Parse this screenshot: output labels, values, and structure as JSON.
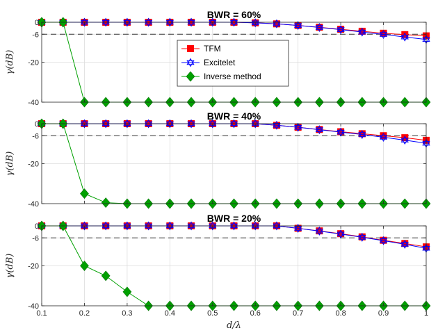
{
  "chart_data": [
    {
      "type": "line",
      "title": "BWR = 60%",
      "ylabel": "γ(dB)",
      "xlabel": "",
      "xlim": [
        0.1,
        1.0
      ],
      "ylim": [
        -40,
        0
      ],
      "xticks": [
        0.1,
        0.2,
        0.3,
        0.4,
        0.5,
        0.6,
        0.7,
        0.8,
        0.9,
        1
      ],
      "yticks": [
        0,
        -6,
        -20,
        -40
      ],
      "ytick_labels": [
        "0",
        "-6",
        "-20",
        "-40"
      ],
      "reference_line": -6,
      "grid": true,
      "legend_position": "center",
      "x": [
        0.1,
        0.15,
        0.2,
        0.25,
        0.3,
        0.35,
        0.4,
        0.45,
        0.5,
        0.55,
        0.6,
        0.65,
        0.7,
        0.75,
        0.8,
        0.85,
        0.9,
        0.95,
        1.0
      ],
      "series": [
        {
          "name": "TFM",
          "color": "#ff0000",
          "marker": "square",
          "values": [
            0,
            0,
            0,
            0,
            0,
            0,
            0,
            0,
            0,
            0,
            -0.3,
            -0.8,
            -1.6,
            -2.5,
            -3.5,
            -4.5,
            -5.5,
            -6.2,
            -6.8
          ]
        },
        {
          "name": "Excitelet",
          "color": "#0000ff",
          "marker": "hexagram",
          "values": [
            0,
            0,
            0,
            0,
            0,
            0,
            0,
            0,
            0,
            0,
            -0.3,
            -0.8,
            -1.6,
            -2.6,
            -3.7,
            -4.9,
            -6.1,
            -7.4,
            -8.6
          ]
        },
        {
          "name": "Inverse method",
          "color": "#00a000",
          "marker": "diamond",
          "values": [
            0,
            0,
            -40,
            -40,
            -40,
            -40,
            -40,
            -40,
            -40,
            -40,
            -40,
            -40,
            -40,
            -40,
            -40,
            -40,
            -40,
            -40,
            -40
          ]
        }
      ]
    },
    {
      "type": "line",
      "title": "BWR = 40%",
      "ylabel": "γ(dB)",
      "xlabel": "",
      "xlim": [
        0.1,
        1.0
      ],
      "ylim": [
        -40,
        0
      ],
      "xticks": [
        0.1,
        0.2,
        0.3,
        0.4,
        0.5,
        0.6,
        0.7,
        0.8,
        0.9,
        1
      ],
      "yticks": [
        0,
        -6,
        -20,
        -40
      ],
      "ytick_labels": [
        "0",
        "-6",
        "-20",
        "-40"
      ],
      "reference_line": -6,
      "grid": true,
      "x": [
        0.1,
        0.15,
        0.2,
        0.25,
        0.3,
        0.35,
        0.4,
        0.45,
        0.5,
        0.55,
        0.6,
        0.65,
        0.7,
        0.75,
        0.8,
        0.85,
        0.9,
        0.95,
        1.0
      ],
      "series": [
        {
          "name": "TFM",
          "color": "#ff0000",
          "marker": "square",
          "values": [
            0,
            0,
            0,
            0,
            0,
            0,
            0,
            0,
            0,
            0,
            0,
            -0.8,
            -1.8,
            -2.9,
            -4.0,
            -5.0,
            -6.0,
            -7.0,
            -8.3
          ]
        },
        {
          "name": "Excitelet",
          "color": "#0000ff",
          "marker": "hexagram",
          "values": [
            0,
            0,
            0,
            0,
            0,
            0,
            0,
            0,
            0,
            0,
            0,
            -0.8,
            -1.8,
            -3.0,
            -4.2,
            -5.4,
            -6.8,
            -8.2,
            -9.8
          ]
        },
        {
          "name": "Inverse method",
          "color": "#00a000",
          "marker": "diamond",
          "values": [
            0,
            0,
            -35,
            -39.5,
            -40,
            -40,
            -40,
            -40,
            -40,
            -40,
            -40,
            -40,
            -40,
            -40,
            -40,
            -40,
            -40,
            -40,
            -40
          ]
        }
      ]
    },
    {
      "type": "line",
      "title": "BWR = 20%",
      "ylabel": "γ(dB)",
      "xlabel": "d/λ",
      "xlim": [
        0.1,
        1.0
      ],
      "ylim": [
        -40,
        0
      ],
      "xticks": [
        0.1,
        0.2,
        0.3,
        0.4,
        0.5,
        0.6,
        0.7,
        0.8,
        0.9,
        1
      ],
      "xtick_labels": [
        "0.1",
        "0.2",
        "0.3",
        "0.4",
        "0.5",
        "0.6",
        "0.7",
        "0.8",
        "0.9",
        "1"
      ],
      "yticks": [
        0,
        -6,
        -20,
        -40
      ],
      "ytick_labels": [
        "0",
        "-6",
        "-20",
        "-40"
      ],
      "reference_line": -6,
      "grid": true,
      "x": [
        0.1,
        0.15,
        0.2,
        0.25,
        0.3,
        0.35,
        0.4,
        0.45,
        0.5,
        0.55,
        0.6,
        0.65,
        0.7,
        0.75,
        0.8,
        0.85,
        0.9,
        0.95,
        1.0
      ],
      "series": [
        {
          "name": "TFM",
          "color": "#ff0000",
          "marker": "square",
          "values": [
            0,
            0,
            0,
            0,
            0,
            0,
            0,
            0,
            0,
            0,
            0,
            0,
            -1.2,
            -2.5,
            -3.9,
            -5.5,
            -7.2,
            -8.8,
            -10.5
          ]
        },
        {
          "name": "Excitelet",
          "color": "#0000ff",
          "marker": "hexagram",
          "values": [
            0,
            0,
            0,
            0,
            0,
            0,
            0,
            0,
            0,
            0,
            0,
            0,
            -1.2,
            -2.6,
            -4.1,
            -5.7,
            -7.4,
            -9.2,
            -11.2
          ]
        },
        {
          "name": "Inverse method",
          "color": "#00a000",
          "marker": "diamond",
          "values": [
            0,
            0,
            -20,
            -25,
            -33,
            -40,
            -40,
            -40,
            -40,
            -40,
            -40,
            -40,
            -40,
            -40,
            -40,
            -40,
            -40,
            -40,
            -40
          ]
        }
      ]
    }
  ]
}
